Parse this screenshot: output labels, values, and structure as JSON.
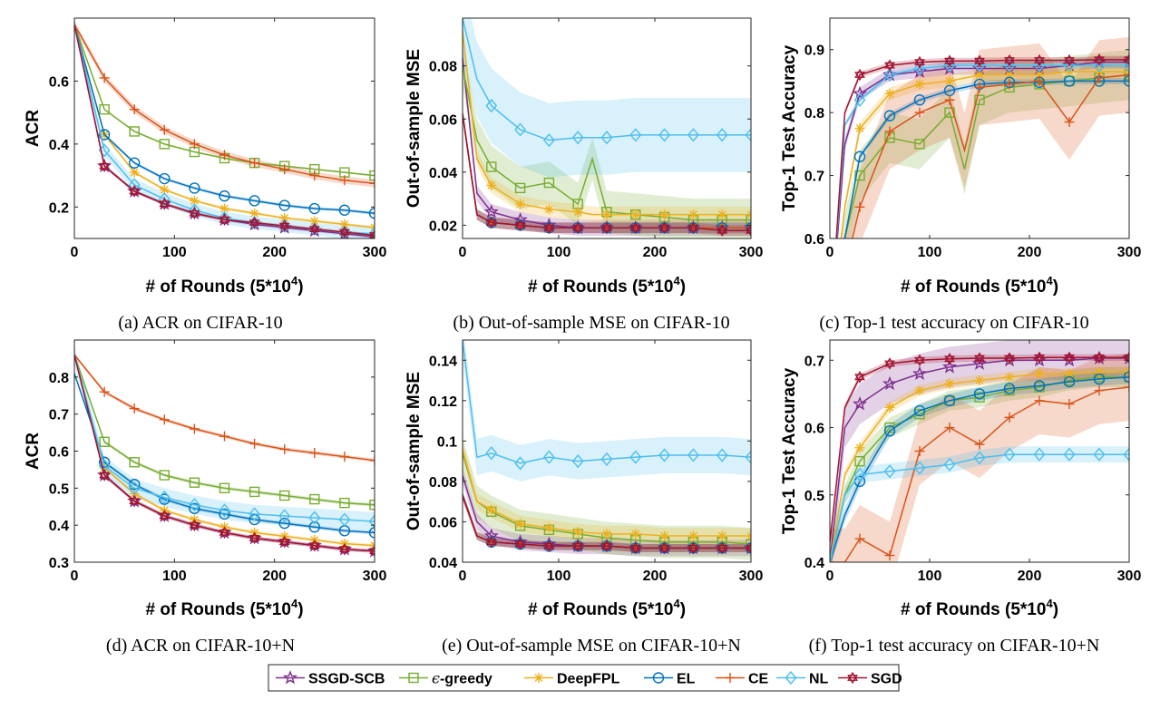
{
  "legend": [
    {
      "name": "SSGD-SCB",
      "color": "#7E2F8E",
      "marker": "star"
    },
    {
      "name": "ϵ-greedy",
      "color": "#77AC30",
      "marker": "square"
    },
    {
      "name": "DeepFPL",
      "color": "#EDB120",
      "marker": "asterisk"
    },
    {
      "name": "EL",
      "color": "#0072BD",
      "marker": "circle"
    },
    {
      "name": "CE",
      "color": "#D95319",
      "marker": "plus"
    },
    {
      "name": "NL",
      "color": "#4DBEEE",
      "marker": "diamond"
    },
    {
      "name": "SGD",
      "color": "#A2142F",
      "marker": "hexagram"
    }
  ],
  "chart_data": [
    {
      "type": "line",
      "caption": "(a) ACR on CIFAR-10",
      "xlabel": "# of Rounds (5*10",
      "xlabel_sup": "4",
      "xlabel_end": ")",
      "ylabel": "ACR",
      "xlim": [
        0,
        300
      ],
      "ylim": [
        0.1,
        0.8
      ],
      "xticks": [
        0,
        100,
        200,
        300
      ],
      "yticks": [
        0.2,
        0.4,
        0.6
      ],
      "ytick_labels": [
        "0.2",
        "0.4",
        "0.6"
      ],
      "x": [
        0,
        30,
        60,
        90,
        120,
        150,
        180,
        210,
        240,
        270,
        300
      ],
      "series": [
        {
          "name": "SSGD-SCB",
          "values": [
            0.78,
            0.33,
            0.25,
            0.21,
            0.18,
            0.16,
            0.145,
            0.135,
            0.125,
            0.115,
            0.105
          ],
          "band": 0.005
        },
        {
          "name": "ϵ-greedy",
          "values": [
            0.78,
            0.51,
            0.44,
            0.4,
            0.375,
            0.355,
            0.34,
            0.33,
            0.32,
            0.31,
            0.3
          ],
          "band": 0.003
        },
        {
          "name": "DeepFPL",
          "values": [
            0.78,
            0.43,
            0.31,
            0.255,
            0.22,
            0.195,
            0.18,
            0.165,
            0.155,
            0.145,
            0.135
          ],
          "band": 0.005
        },
        {
          "name": "EL",
          "values": [
            0.78,
            0.43,
            0.34,
            0.29,
            0.26,
            0.235,
            0.22,
            0.205,
            0.195,
            0.19,
            0.18
          ],
          "band": 0.005
        },
        {
          "name": "CE",
          "values": [
            0.78,
            0.61,
            0.51,
            0.445,
            0.4,
            0.365,
            0.34,
            0.32,
            0.3,
            0.285,
            0.275
          ],
          "band": 0.012
        },
        {
          "name": "NL",
          "values": [
            0.78,
            0.38,
            0.27,
            0.225,
            0.19,
            0.165,
            0.15,
            0.14,
            0.13,
            0.12,
            0.115
          ],
          "band": 0.02
        },
        {
          "name": "SGD",
          "values": [
            0.78,
            0.33,
            0.25,
            0.21,
            0.18,
            0.16,
            0.15,
            0.14,
            0.13,
            0.12,
            0.11
          ],
          "band": 0.005
        }
      ]
    },
    {
      "type": "line",
      "caption": "(b) Out-of-sample MSE on CIFAR-10",
      "xlabel": "# of Rounds (5*10",
      "xlabel_sup": "4",
      "xlabel_end": ")",
      "ylabel": "Out-of-sample MSE",
      "xlim": [
        0,
        300
      ],
      "ylim": [
        0.015,
        0.098
      ],
      "xticks": [
        0,
        100,
        200,
        300
      ],
      "yticks": [
        0.02,
        0.04,
        0.06,
        0.08
      ],
      "ytick_labels": [
        "0.02",
        "0.04",
        "0.06",
        "0.08"
      ],
      "x": [
        0,
        15,
        30,
        60,
        90,
        120,
        135,
        150,
        180,
        210,
        240,
        270,
        300
      ],
      "series": [
        {
          "name": "SSGD-SCB",
          "values": [
            0.083,
            0.032,
            0.025,
            0.022,
            0.02,
            0.019,
            0.019,
            0.019,
            0.019,
            0.019,
            0.019,
            0.019,
            0.019
          ],
          "band": 0.003
        },
        {
          "name": "ϵ-greedy",
          "values": [
            0.08,
            0.052,
            0.042,
            0.034,
            0.036,
            0.028,
            0.045,
            0.025,
            0.024,
            0.023,
            0.022,
            0.022,
            0.022
          ],
          "band": 0.008
        },
        {
          "name": "DeepFPL",
          "values": [
            0.093,
            0.045,
            0.035,
            0.028,
            0.026,
            0.025,
            0.024,
            0.024,
            0.024,
            0.024,
            0.024,
            0.024,
            0.024
          ],
          "band": 0.003
        },
        {
          "name": "EL",
          "values": [
            0.062,
            0.024,
            0.021,
            0.02,
            0.019,
            0.019,
            0.019,
            0.019,
            0.019,
            0.019,
            0.019,
            0.019,
            0.019
          ],
          "band": 0.002
        },
        {
          "name": "CE",
          "values": [
            0.062,
            0.024,
            0.021,
            0.02,
            0.019,
            0.019,
            0.019,
            0.019,
            0.019,
            0.019,
            0.019,
            0.019,
            0.019
          ],
          "band": 0.002
        },
        {
          "name": "NL",
          "values": [
            0.098,
            0.075,
            0.065,
            0.056,
            0.052,
            0.053,
            0.053,
            0.053,
            0.054,
            0.054,
            0.054,
            0.054,
            0.054
          ],
          "band": 0.014
        },
        {
          "name": "SGD",
          "values": [
            0.062,
            0.024,
            0.021,
            0.02,
            0.019,
            0.019,
            0.019,
            0.019,
            0.019,
            0.019,
            0.019,
            0.018,
            0.018
          ],
          "band": 0.002
        }
      ]
    },
    {
      "type": "line",
      "caption": "(c) Top-1 test accuracy on CIFAR-10",
      "xlabel": "# of Rounds (5*10",
      "xlabel_sup": "4",
      "xlabel_end": ")",
      "ylabel": "Top-1 Test Accuracy",
      "xlim": [
        0,
        300
      ],
      "ylim": [
        0.6,
        0.95
      ],
      "xticks": [
        0,
        100,
        200,
        300
      ],
      "yticks": [
        0.6,
        0.7,
        0.8,
        0.9
      ],
      "ytick_labels": [
        "0.6",
        "0.7",
        "0.8",
        "0.9"
      ],
      "x": [
        0,
        15,
        30,
        60,
        90,
        120,
        135,
        150,
        180,
        210,
        240,
        270,
        300
      ],
      "series": [
        {
          "name": "SSGD-SCB",
          "values": [
            0.45,
            0.75,
            0.83,
            0.86,
            0.865,
            0.87,
            0.87,
            0.87,
            0.87,
            0.87,
            0.875,
            0.88,
            0.88
          ],
          "band": 0.01
        },
        {
          "name": "ϵ-greedy",
          "values": [
            0.45,
            0.6,
            0.7,
            0.76,
            0.75,
            0.8,
            0.71,
            0.82,
            0.84,
            0.845,
            0.85,
            0.855,
            0.86
          ],
          "band": 0.04
        },
        {
          "name": "DeepFPL",
          "values": [
            0.45,
            0.65,
            0.775,
            0.83,
            0.845,
            0.85,
            0.855,
            0.86,
            0.86,
            0.86,
            0.865,
            0.865,
            0.865
          ],
          "band": 0.01
        },
        {
          "name": "EL",
          "values": [
            0.45,
            0.6,
            0.73,
            0.795,
            0.82,
            0.835,
            0.84,
            0.845,
            0.848,
            0.848,
            0.85,
            0.85,
            0.85
          ],
          "band": 0.005
        },
        {
          "name": "CE",
          "values": [
            0.45,
            0.55,
            0.65,
            0.77,
            0.8,
            0.82,
            0.74,
            0.84,
            0.845,
            0.85,
            0.785,
            0.855,
            0.86
          ],
          "band": 0.06
        },
        {
          "name": "NL",
          "values": [
            0.45,
            0.78,
            0.82,
            0.86,
            0.87,
            0.875,
            0.875,
            0.875,
            0.875,
            0.875,
            0.875,
            0.875,
            0.875
          ],
          "band": 0.005
        },
        {
          "name": "SGD",
          "values": [
            0.45,
            0.8,
            0.86,
            0.875,
            0.88,
            0.882,
            0.882,
            0.882,
            0.883,
            0.883,
            0.883,
            0.884,
            0.884
          ],
          "band": 0.005
        }
      ]
    },
    {
      "type": "line",
      "caption": "(d) ACR on CIFAR-10+N",
      "xlabel": "# of Rounds (5*10",
      "xlabel_sup": "4",
      "xlabel_end": ")",
      "ylabel": "ACR",
      "xlim": [
        0,
        300
      ],
      "ylim": [
        0.3,
        0.9
      ],
      "xticks": [
        0,
        100,
        200,
        300
      ],
      "yticks": [
        0.3,
        0.4,
        0.5,
        0.6,
        0.7,
        0.8
      ],
      "ytick_labels": [
        "0.3",
        "0.4",
        "0.5",
        "0.6",
        "0.7",
        "0.8"
      ],
      "x": [
        0,
        30,
        60,
        90,
        120,
        150,
        180,
        210,
        240,
        270,
        300
      ],
      "series": [
        {
          "name": "SSGD-SCB",
          "values": [
            0.86,
            0.535,
            0.465,
            0.425,
            0.4,
            0.38,
            0.365,
            0.355,
            0.345,
            0.335,
            0.33
          ],
          "band": 0.005
        },
        {
          "name": "ϵ-greedy",
          "values": [
            0.86,
            0.625,
            0.57,
            0.535,
            0.515,
            0.5,
            0.49,
            0.48,
            0.47,
            0.46,
            0.455
          ],
          "band": 0.005
        },
        {
          "name": "DeepFPL",
          "values": [
            0.86,
            0.555,
            0.485,
            0.44,
            0.415,
            0.395,
            0.38,
            0.37,
            0.36,
            0.35,
            0.345
          ],
          "band": 0.005
        },
        {
          "name": "EL",
          "values": [
            0.81,
            0.57,
            0.51,
            0.47,
            0.445,
            0.43,
            0.415,
            0.405,
            0.395,
            0.385,
            0.38
          ],
          "band": 0.005
        },
        {
          "name": "CE",
          "values": [
            0.86,
            0.76,
            0.715,
            0.685,
            0.66,
            0.64,
            0.62,
            0.605,
            0.595,
            0.585,
            0.575
          ],
          "band": 0.005
        },
        {
          "name": "NL",
          "values": [
            0.86,
            0.56,
            0.5,
            0.475,
            0.455,
            0.44,
            0.43,
            0.425,
            0.42,
            0.415,
            0.41
          ],
          "band": 0.025
        },
        {
          "name": "SGD",
          "values": [
            0.86,
            0.535,
            0.465,
            0.425,
            0.4,
            0.38,
            0.365,
            0.355,
            0.345,
            0.335,
            0.33
          ],
          "band": 0.005
        }
      ]
    },
    {
      "type": "line",
      "caption": "(e) Out-of-sample MSE on CIFAR-10+N",
      "xlabel": "# of Rounds (5*10",
      "xlabel_sup": "4",
      "xlabel_end": ")",
      "ylabel": "Out-of-sample MSE",
      "xlim": [
        0,
        300
      ],
      "ylim": [
        0.04,
        0.15
      ],
      "xticks": [
        0,
        100,
        200,
        300
      ],
      "yticks": [
        0.04,
        0.06,
        0.08,
        0.1,
        0.12,
        0.14
      ],
      "ytick_labels": [
        "0.04",
        "0.06",
        "0.08",
        "0.1",
        "0.12",
        "0.14"
      ],
      "x": [
        0,
        15,
        30,
        60,
        90,
        120,
        150,
        180,
        210,
        240,
        270,
        300
      ],
      "series": [
        {
          "name": "SSGD-SCB",
          "values": [
            0.083,
            0.06,
            0.053,
            0.05,
            0.049,
            0.048,
            0.048,
            0.047,
            0.047,
            0.047,
            0.047,
            0.047
          ],
          "band": 0.004
        },
        {
          "name": "ϵ-greedy",
          "values": [
            0.094,
            0.07,
            0.065,
            0.058,
            0.056,
            0.054,
            0.052,
            0.051,
            0.05,
            0.05,
            0.05,
            0.049
          ],
          "band": 0.008
        },
        {
          "name": "DeepFPL",
          "values": [
            0.096,
            0.07,
            0.066,
            0.059,
            0.057,
            0.055,
            0.054,
            0.054,
            0.053,
            0.053,
            0.053,
            0.053
          ],
          "band": 0.004
        },
        {
          "name": "EL",
          "values": [
            0.073,
            0.053,
            0.05,
            0.049,
            0.048,
            0.048,
            0.048,
            0.047,
            0.047,
            0.047,
            0.047,
            0.047
          ],
          "band": 0.002
        },
        {
          "name": "CE",
          "values": [
            0.073,
            0.053,
            0.05,
            0.049,
            0.048,
            0.048,
            0.048,
            0.047,
            0.047,
            0.047,
            0.047,
            0.047
          ],
          "band": 0.002
        },
        {
          "name": "NL",
          "values": [
            0.15,
            0.092,
            0.094,
            0.089,
            0.092,
            0.09,
            0.091,
            0.092,
            0.093,
            0.093,
            0.093,
            0.092
          ],
          "band": 0.009
        },
        {
          "name": "SGD",
          "values": [
            0.073,
            0.053,
            0.05,
            0.049,
            0.048,
            0.048,
            0.048,
            0.047,
            0.047,
            0.047,
            0.047,
            0.047
          ],
          "band": 0.002
        }
      ]
    },
    {
      "type": "line",
      "caption": "(f) Top-1 test accuracy on CIFAR-10+N",
      "xlabel": "# of Rounds (5*10",
      "xlabel_sup": "4",
      "xlabel_end": ")",
      "ylabel": "Top-1 Test Accuracy",
      "xlim": [
        0,
        300
      ],
      "ylim": [
        0.4,
        0.73
      ],
      "xticks": [
        0,
        100,
        200,
        300
      ],
      "yticks": [
        0.4,
        0.5,
        0.6,
        0.7
      ],
      "ytick_labels": [
        "0.4",
        "0.5",
        "0.6",
        "0.7"
      ],
      "x": [
        0,
        15,
        30,
        60,
        90,
        120,
        150,
        180,
        210,
        240,
        270,
        300
      ],
      "series": [
        {
          "name": "SSGD-SCB",
          "values": [
            0.4,
            0.6,
            0.635,
            0.665,
            0.68,
            0.69,
            0.695,
            0.7,
            0.7,
            0.7,
            0.703,
            0.703
          ],
          "band": 0.03
        },
        {
          "name": "ϵ-greedy",
          "values": [
            0.4,
            0.5,
            0.55,
            0.6,
            0.62,
            0.64,
            0.645,
            0.655,
            0.66,
            0.67,
            0.675,
            0.675
          ],
          "band": 0.015
        },
        {
          "name": "DeepFPL",
          "values": [
            0.4,
            0.53,
            0.57,
            0.63,
            0.655,
            0.665,
            0.67,
            0.675,
            0.68,
            0.68,
            0.682,
            0.683
          ],
          "band": 0.008
        },
        {
          "name": "EL",
          "values": [
            0.4,
            0.47,
            0.52,
            0.595,
            0.625,
            0.64,
            0.65,
            0.658,
            0.662,
            0.668,
            0.672,
            0.675
          ],
          "band": 0.01
        },
        {
          "name": "CE",
          "values": [
            0.4,
            0.4,
            0.435,
            0.41,
            0.565,
            0.6,
            0.575,
            0.615,
            0.64,
            0.635,
            0.655,
            0.66
          ],
          "band": 0.05
        },
        {
          "name": "NL",
          "values": [
            0.4,
            0.5,
            0.53,
            0.535,
            0.54,
            0.545,
            0.555,
            0.56,
            0.56,
            0.56,
            0.56,
            0.56
          ],
          "band": 0.012
        },
        {
          "name": "SGD",
          "values": [
            0.43,
            0.63,
            0.675,
            0.695,
            0.7,
            0.702,
            0.703,
            0.703,
            0.704,
            0.704,
            0.704,
            0.704
          ],
          "band": 0.005
        }
      ]
    }
  ]
}
